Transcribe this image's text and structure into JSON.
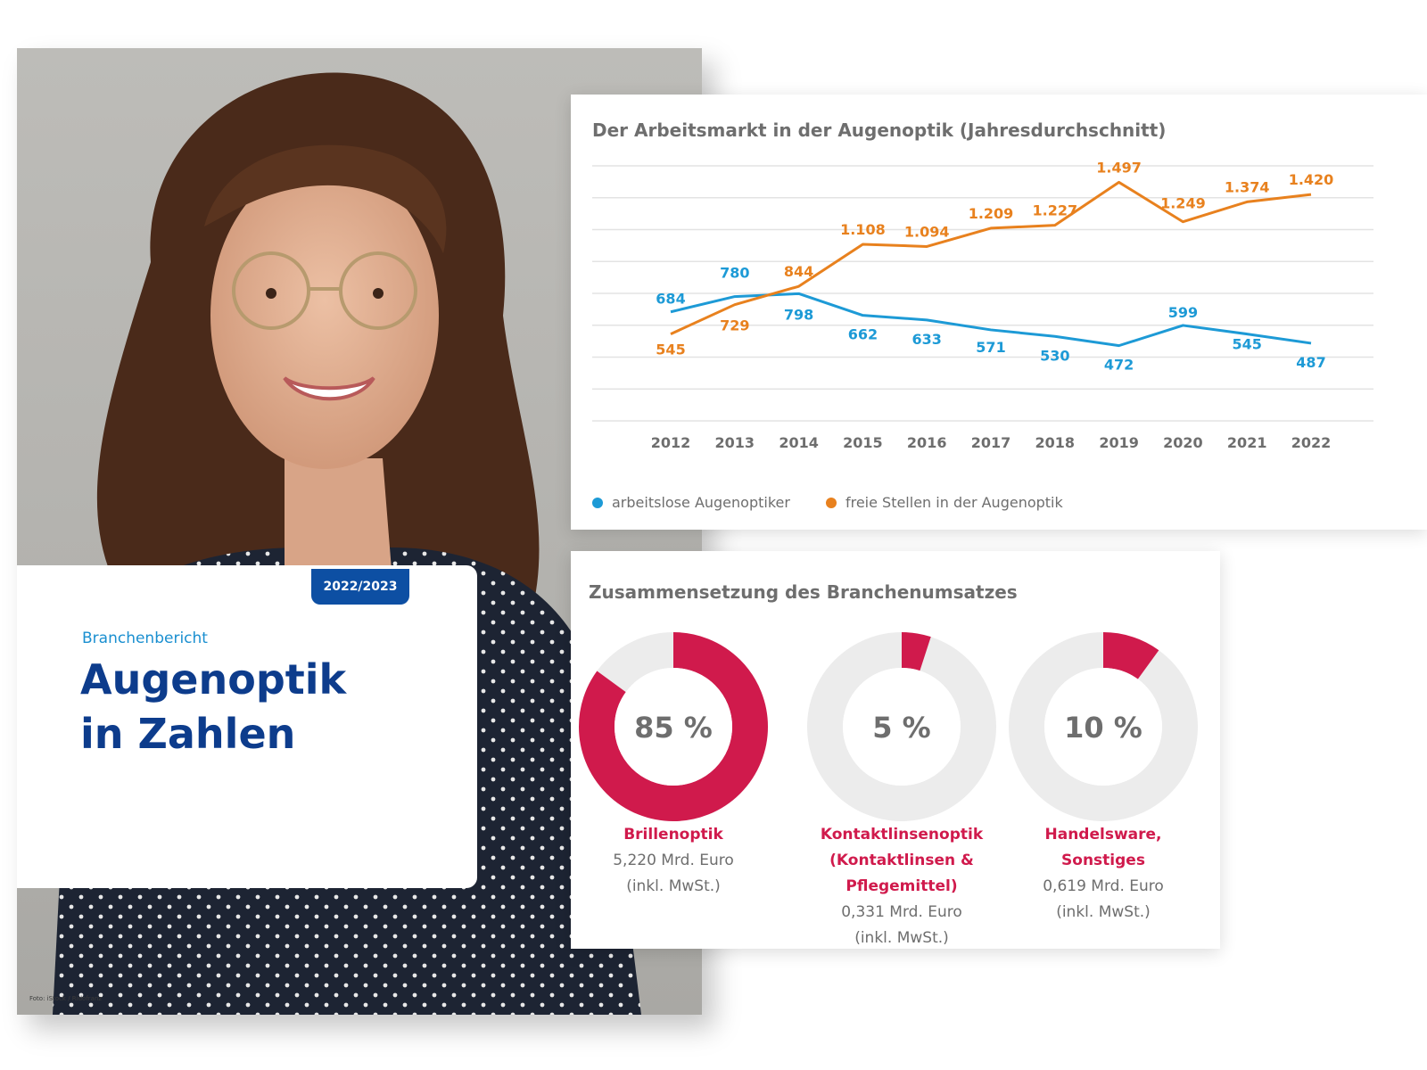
{
  "cover": {
    "year_badge": "2022/2023",
    "kicker": "Branchenbericht",
    "title_line1": "Augenoptik",
    "title_line2": "in Zahlen",
    "photo_credit": "Foto: iStock / Ridofranz"
  },
  "colors": {
    "blue_series": "#1d9ad6",
    "orange_series": "#e8811e",
    "accent_red": "#d01a4c",
    "donut_track": "#ececec",
    "brand_blue": "#0d3c8c"
  },
  "chart_data": [
    {
      "type": "line",
      "title": "Der Arbeitsmarkt in der Augenoptik (Jahresdurchschnitt)",
      "x": [
        "2012",
        "2013",
        "2014",
        "2015",
        "2016",
        "2017",
        "2018",
        "2019",
        "2020",
        "2021",
        "2022"
      ],
      "series": [
        {
          "name": "arbeitslose Augenoptiker",
          "values": [
            684,
            780,
            798,
            662,
            633,
            571,
            530,
            472,
            599,
            545,
            487
          ],
          "labels": [
            "684",
            "780",
            "798",
            "662",
            "633",
            "571",
            "530",
            "472",
            "599",
            "545",
            "487"
          ]
        },
        {
          "name": "freie Stellen in der Augenoptik",
          "values": [
            545,
            729,
            844,
            1108,
            1094,
            1209,
            1227,
            1497,
            1249,
            1374,
            1420
          ],
          "labels": [
            "545",
            "729",
            "844",
            "1.108",
            "1.094",
            "1.209",
            "1.227",
            "1.497",
            "1.249",
            "1.374",
            "1.420"
          ]
        }
      ],
      "ylim": [
        0,
        1600
      ],
      "grid": true,
      "legend": "bottom-left"
    },
    {
      "type": "pie",
      "title": "Zusammensetzung des Branchenumsatzes",
      "slices": [
        {
          "percent": 85,
          "label": "85 %",
          "name": "Brillenoptik",
          "amount": "5,220 Mrd. Euro",
          "note": "(inkl. MwSt.)"
        },
        {
          "percent": 5,
          "label": "5 %",
          "name": "Kontaktlinsenoptik",
          "name2": "(Kontaktlinsen & Pflegemittel)",
          "amount": "0,331 Mrd. Euro",
          "note": "(inkl. MwSt.)"
        },
        {
          "percent": 10,
          "label": "10 %",
          "name": "Handelsware,",
          "name2": "Sonstiges",
          "amount": "0,619 Mrd. Euro",
          "note": "(inkl. MwSt.)"
        }
      ]
    }
  ]
}
